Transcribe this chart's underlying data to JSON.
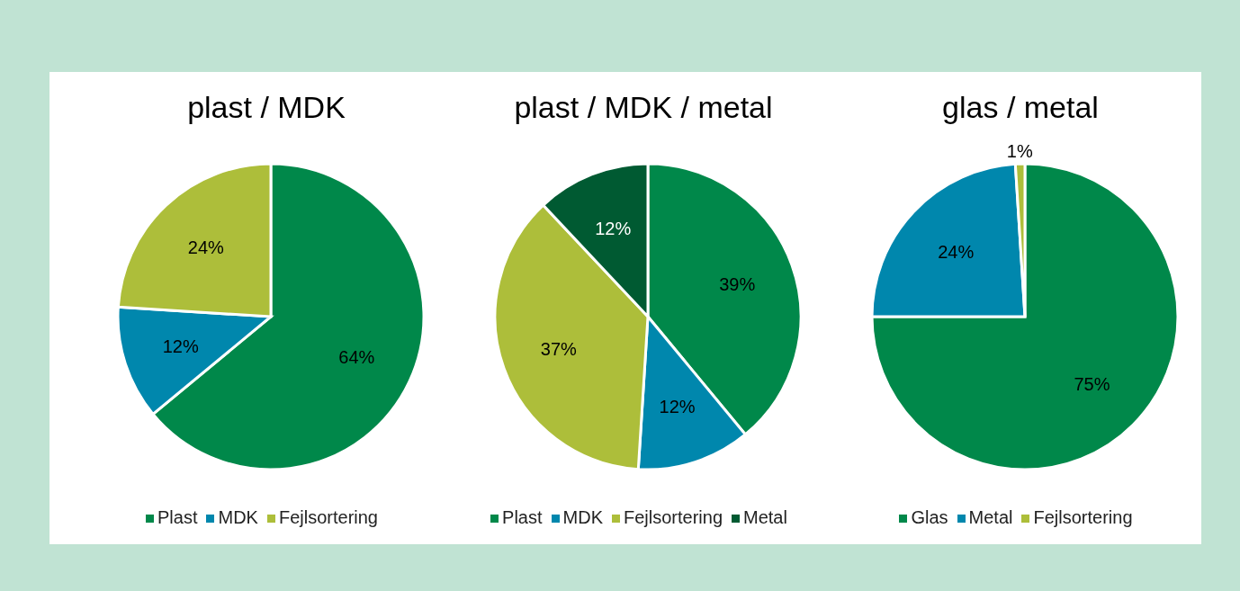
{
  "chart_data": [
    {
      "type": "pie",
      "title": "plast / MDK",
      "categories": [
        "Plast",
        "MDK",
        "Fejlsortering"
      ],
      "values": [
        64,
        12,
        24
      ],
      "colors": [
        "#00884a",
        "#0087ad",
        "#adbe3a"
      ],
      "value_labels": [
        "64%",
        "12%",
        "24%"
      ],
      "legend": "bottom"
    },
    {
      "type": "pie",
      "title": "plast / MDK / metal",
      "categories": [
        "Plast",
        "MDK",
        "Fejlsortering",
        "Metal"
      ],
      "values": [
        39,
        12,
        37,
        12
      ],
      "colors": [
        "#00884a",
        "#0087ad",
        "#adbe3a",
        "#005a32"
      ],
      "value_labels": [
        "39%",
        "12%",
        "37%",
        "12%"
      ],
      "legend": "bottom"
    },
    {
      "type": "pie",
      "title": "glas / metal",
      "categories": [
        "Glas",
        "Metal",
        "Fejlsortering"
      ],
      "values": [
        75,
        24,
        1
      ],
      "colors": [
        "#00884a",
        "#0087ad",
        "#adbe3a"
      ],
      "value_labels": [
        "75%",
        "24%",
        "1%"
      ],
      "legend": "bottom"
    }
  ]
}
